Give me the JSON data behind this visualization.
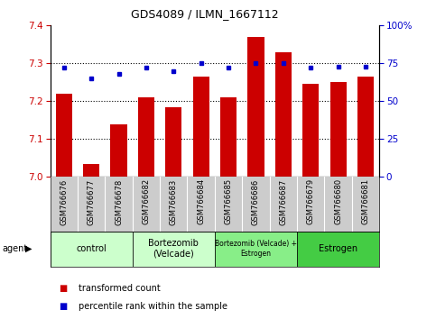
{
  "title": "GDS4089 / ILMN_1667112",
  "samples": [
    "GSM766676",
    "GSM766677",
    "GSM766678",
    "GSM766682",
    "GSM766683",
    "GSM766684",
    "GSM766685",
    "GSM766686",
    "GSM766687",
    "GSM766679",
    "GSM766680",
    "GSM766681"
  ],
  "red_values": [
    7.22,
    7.035,
    7.14,
    7.21,
    7.185,
    7.265,
    7.21,
    7.37,
    7.33,
    7.245,
    7.25,
    7.265
  ],
  "blue_values": [
    72,
    65,
    68,
    72,
    70,
    75,
    72,
    75,
    75,
    72,
    73,
    73
  ],
  "ylim_left": [
    7.0,
    7.4
  ],
  "ylim_right": [
    0,
    100
  ],
  "yticks_left": [
    7.0,
    7.1,
    7.2,
    7.3,
    7.4
  ],
  "yticks_right": [
    0,
    25,
    50,
    75,
    100
  ],
  "ytick_labels_right": [
    "0",
    "25",
    "50",
    "75",
    "100%"
  ],
  "dotted_lines": [
    7.1,
    7.2,
    7.3
  ],
  "groups": [
    {
      "label": "control",
      "start": 0,
      "end": 3,
      "color": "#ccffcc"
    },
    {
      "label": "Bortezomib\n(Velcade)",
      "start": 3,
      "end": 6,
      "color": "#ccffcc"
    },
    {
      "label": "Bortezomib (Velcade) +\nEstrogen",
      "start": 6,
      "end": 9,
      "color": "#88ee88"
    },
    {
      "label": "Estrogen",
      "start": 9,
      "end": 12,
      "color": "#44cc44"
    }
  ],
  "bar_color": "#cc0000",
  "dot_color": "#0000cc",
  "tick_area_color": "#cccccc",
  "legend_red": "transformed count",
  "legend_blue": "percentile rank within the sample",
  "left_color": "#cc0000",
  "right_color": "#0000cc"
}
